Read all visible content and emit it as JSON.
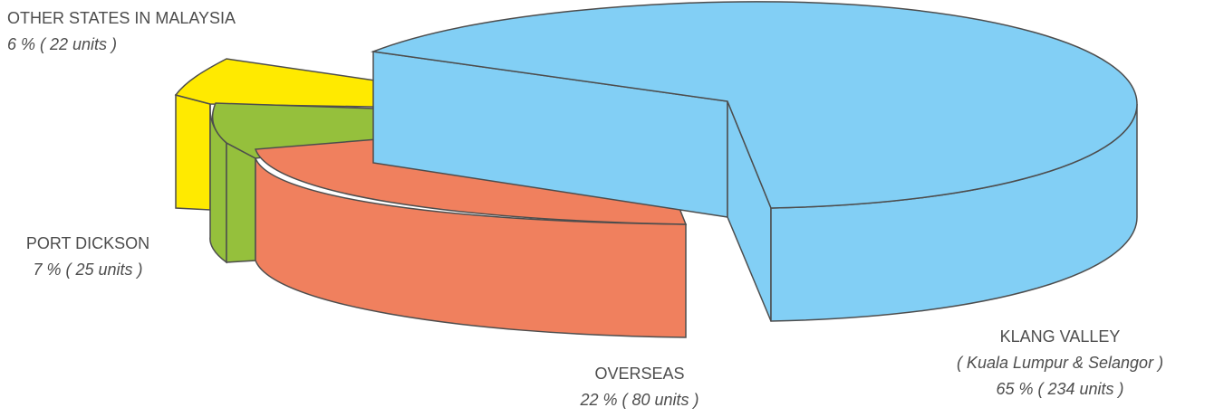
{
  "chart_data": {
    "type": "pie",
    "style": "3d-exploded",
    "title": "",
    "legend": "none",
    "slices": [
      {
        "label": "KLANG VALLEY",
        "sublabel": "( Kuala Lumpur & Selangor )",
        "value_label": "65 % ( 234 units )",
        "percent": 65,
        "units": 234,
        "color": "#82cff5",
        "side_color": "#82cff5"
      },
      {
        "label": "OVERSEAS",
        "sublabel": "",
        "value_label": "22 % ( 80 units )",
        "percent": 22,
        "units": 80,
        "color": "#f0805e",
        "side_color": "#f0805e"
      },
      {
        "label": "PORT DICKSON",
        "sublabel": "",
        "value_label": "7 % ( 25 units )",
        "percent": 7,
        "units": 25,
        "color": "#95c03c",
        "side_color": "#95c03c"
      },
      {
        "label": "OTHER STATES IN MALAYSIA",
        "sublabel": "",
        "value_label": "6 % ( 22 units )",
        "percent": 6,
        "units": 22,
        "color": "#ffea00",
        "side_color": "#ffea00"
      }
    ]
  }
}
